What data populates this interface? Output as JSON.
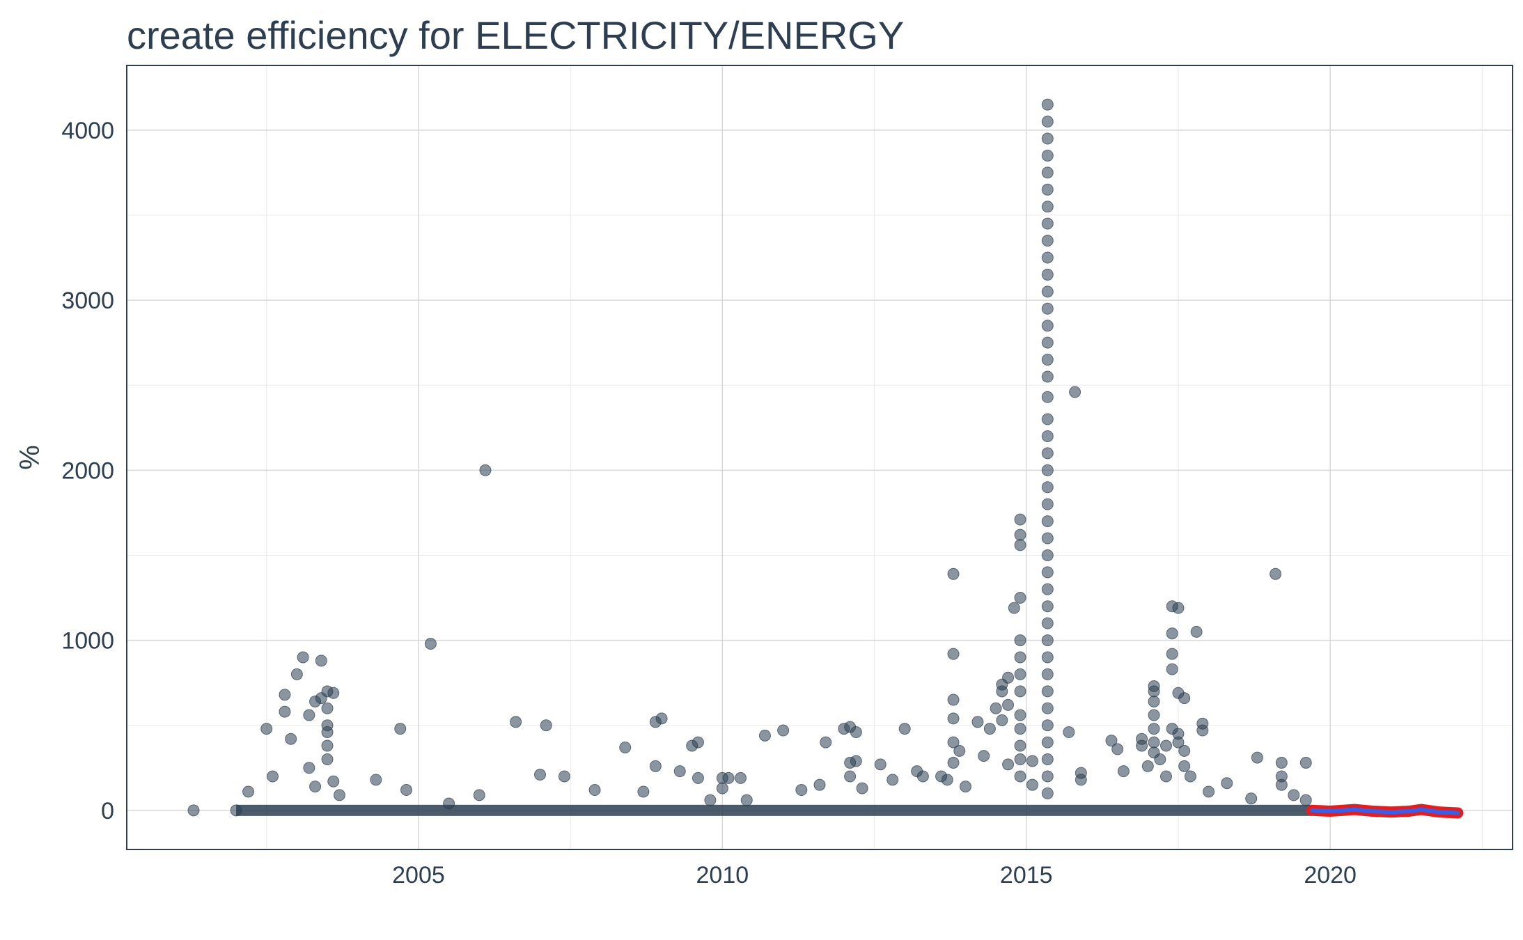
{
  "chart_data": {
    "type": "scatter",
    "title": "create efficiency for ELECTRICITY/ENERGY",
    "xlabel": "",
    "ylabel": "%",
    "xlim": [
      2000.2,
      2023
    ],
    "ylim": [
      -230,
      4380
    ],
    "x_ticks": [
      2005,
      2010,
      2015,
      2020
    ],
    "y_ticks": [
      0,
      1000,
      2000,
      3000,
      4000
    ],
    "grid": true,
    "colors": {
      "points": "#2c3e50",
      "line_outline": "#e02020",
      "line": "#3a5ee8",
      "frame": "#2c3e50"
    },
    "series": [
      {
        "points": [
          [
            2001.3,
            0
          ],
          [
            2002.0,
            0
          ],
          [
            2002.2,
            110
          ],
          [
            2002.5,
            480
          ],
          [
            2002.6,
            200
          ],
          [
            2002.8,
            680
          ],
          [
            2002.8,
            580
          ],
          [
            2002.9,
            420
          ],
          [
            2003.0,
            800
          ],
          [
            2003.1,
            900
          ],
          [
            2003.2,
            560
          ],
          [
            2003.3,
            640
          ],
          [
            2003.4,
            660
          ],
          [
            2003.5,
            460
          ],
          [
            2003.5,
            380
          ],
          [
            2003.2,
            250
          ],
          [
            2003.3,
            140
          ],
          [
            2003.4,
            880
          ],
          [
            2003.5,
            700
          ],
          [
            2003.6,
            690
          ],
          [
            2003.5,
            600
          ],
          [
            2003.5,
            500
          ],
          [
            2003.5,
            300
          ],
          [
            2003.6,
            170
          ],
          [
            2003.7,
            90
          ],
          [
            2004.3,
            180
          ],
          [
            2004.7,
            480
          ],
          [
            2004.8,
            120
          ],
          [
            2005.2,
            980
          ],
          [
            2005.5,
            40
          ],
          [
            2006.1,
            2000
          ],
          [
            2006.0,
            90
          ],
          [
            2006.6,
            520
          ],
          [
            2007.0,
            210
          ],
          [
            2007.1,
            500
          ],
          [
            2007.4,
            200
          ],
          [
            2007.9,
            120
          ],
          [
            2008.4,
            370
          ],
          [
            2008.7,
            110
          ],
          [
            2008.9,
            520
          ],
          [
            2009.0,
            540
          ],
          [
            2008.9,
            260
          ],
          [
            2009.3,
            230
          ],
          [
            2009.5,
            380
          ],
          [
            2009.6,
            400
          ],
          [
            2009.6,
            190
          ],
          [
            2009.8,
            60
          ],
          [
            2010.0,
            190
          ],
          [
            2010.0,
            130
          ],
          [
            2010.1,
            190
          ],
          [
            2010.3,
            190
          ],
          [
            2010.4,
            60
          ],
          [
            2010.7,
            440
          ],
          [
            2011.0,
            470
          ],
          [
            2011.3,
            120
          ],
          [
            2011.6,
            150
          ],
          [
            2011.7,
            400
          ],
          [
            2012.0,
            480
          ],
          [
            2012.1,
            490
          ],
          [
            2012.2,
            460
          ],
          [
            2012.1,
            280
          ],
          [
            2012.1,
            200
          ],
          [
            2012.2,
            290
          ],
          [
            2012.3,
            130
          ],
          [
            2012.6,
            270
          ],
          [
            2012.8,
            180
          ],
          [
            2013.0,
            480
          ],
          [
            2013.2,
            230
          ],
          [
            2013.3,
            200
          ],
          [
            2013.6,
            200
          ],
          [
            2013.7,
            180
          ],
          [
            2013.8,
            650
          ],
          [
            2013.8,
            920
          ],
          [
            2013.8,
            1390
          ],
          [
            2013.8,
            540
          ],
          [
            2013.8,
            400
          ],
          [
            2013.8,
            280
          ],
          [
            2013.9,
            350
          ],
          [
            2014.0,
            140
          ],
          [
            2014.2,
            520
          ],
          [
            2014.3,
            320
          ],
          [
            2014.4,
            480
          ],
          [
            2014.5,
            600
          ],
          [
            2014.6,
            700
          ],
          [
            2014.7,
            780
          ],
          [
            2014.6,
            740
          ],
          [
            2014.7,
            620
          ],
          [
            2014.6,
            530
          ],
          [
            2014.7,
            270
          ],
          [
            2014.8,
            1190
          ],
          [
            2014.9,
            1250
          ],
          [
            2014.9,
            1710
          ],
          [
            2014.9,
            1620
          ],
          [
            2014.9,
            1560
          ],
          [
            2014.9,
            1000
          ],
          [
            2014.9,
            900
          ],
          [
            2014.9,
            800
          ],
          [
            2014.9,
            700
          ],
          [
            2014.9,
            560
          ],
          [
            2014.9,
            480
          ],
          [
            2014.9,
            380
          ],
          [
            2014.9,
            300
          ],
          [
            2014.9,
            200
          ],
          [
            2015.1,
            290
          ],
          [
            2015.1,
            150
          ],
          [
            2015.35,
            4150
          ],
          [
            2015.35,
            4050
          ],
          [
            2015.35,
            3950
          ],
          [
            2015.35,
            3850
          ],
          [
            2015.35,
            3750
          ],
          [
            2015.35,
            3650
          ],
          [
            2015.35,
            3550
          ],
          [
            2015.35,
            3450
          ],
          [
            2015.35,
            3350
          ],
          [
            2015.35,
            3250
          ],
          [
            2015.35,
            3150
          ],
          [
            2015.35,
            3050
          ],
          [
            2015.35,
            2950
          ],
          [
            2015.35,
            2850
          ],
          [
            2015.35,
            2750
          ],
          [
            2015.35,
            2650
          ],
          [
            2015.35,
            2550
          ],
          [
            2015.35,
            2430
          ],
          [
            2015.35,
            2300
          ],
          [
            2015.35,
            2200
          ],
          [
            2015.35,
            2100
          ],
          [
            2015.35,
            2000
          ],
          [
            2015.35,
            1900
          ],
          [
            2015.35,
            1800
          ],
          [
            2015.35,
            1700
          ],
          [
            2015.35,
            1600
          ],
          [
            2015.35,
            1500
          ],
          [
            2015.35,
            1400
          ],
          [
            2015.35,
            1300
          ],
          [
            2015.35,
            1200
          ],
          [
            2015.35,
            1100
          ],
          [
            2015.35,
            1000
          ],
          [
            2015.35,
            900
          ],
          [
            2015.35,
            800
          ],
          [
            2015.35,
            700
          ],
          [
            2015.35,
            600
          ],
          [
            2015.35,
            500
          ],
          [
            2015.35,
            400
          ],
          [
            2015.35,
            300
          ],
          [
            2015.35,
            200
          ],
          [
            2015.35,
            100
          ],
          [
            2015.7,
            460
          ],
          [
            2015.8,
            2460
          ],
          [
            2015.9,
            180
          ],
          [
            2015.9,
            220
          ],
          [
            2016.4,
            410
          ],
          [
            2016.5,
            360
          ],
          [
            2016.6,
            230
          ],
          [
            2016.9,
            380
          ],
          [
            2016.9,
            420
          ],
          [
            2017.0,
            260
          ],
          [
            2017.1,
            730
          ],
          [
            2017.1,
            700
          ],
          [
            2017.1,
            640
          ],
          [
            2017.1,
            560
          ],
          [
            2017.1,
            480
          ],
          [
            2017.1,
            400
          ],
          [
            2017.1,
            340
          ],
          [
            2017.2,
            300
          ],
          [
            2017.3,
            200
          ],
          [
            2017.3,
            380
          ],
          [
            2017.4,
            1040
          ],
          [
            2017.4,
            920
          ],
          [
            2017.4,
            830
          ],
          [
            2017.4,
            1200
          ],
          [
            2017.5,
            1190
          ],
          [
            2017.5,
            690
          ],
          [
            2017.6,
            660
          ],
          [
            2017.4,
            480
          ],
          [
            2017.5,
            450
          ],
          [
            2017.5,
            400
          ],
          [
            2017.6,
            350
          ],
          [
            2017.6,
            260
          ],
          [
            2017.7,
            200
          ],
          [
            2017.8,
            1050
          ],
          [
            2017.9,
            470
          ],
          [
            2017.9,
            510
          ],
          [
            2018.0,
            110
          ],
          [
            2018.3,
            160
          ],
          [
            2018.7,
            70
          ],
          [
            2018.8,
            310
          ],
          [
            2019.1,
            1390
          ],
          [
            2019.2,
            280
          ],
          [
            2019.2,
            200
          ],
          [
            2019.2,
            150
          ],
          [
            2019.4,
            90
          ],
          [
            2019.6,
            280
          ],
          [
            2019.6,
            60
          ]
        ]
      },
      {
        "name": "",
        "type": "line",
        "x": [
          2019.7,
          2020.0,
          2020.4,
          2020.7,
          2021.0,
          2021.3,
          2021.5,
          2021.8,
          2022.1
        ],
        "y": [
          0,
          -5,
          5,
          -5,
          -10,
          -5,
          5,
          -10,
          -15
        ]
      }
    ]
  }
}
